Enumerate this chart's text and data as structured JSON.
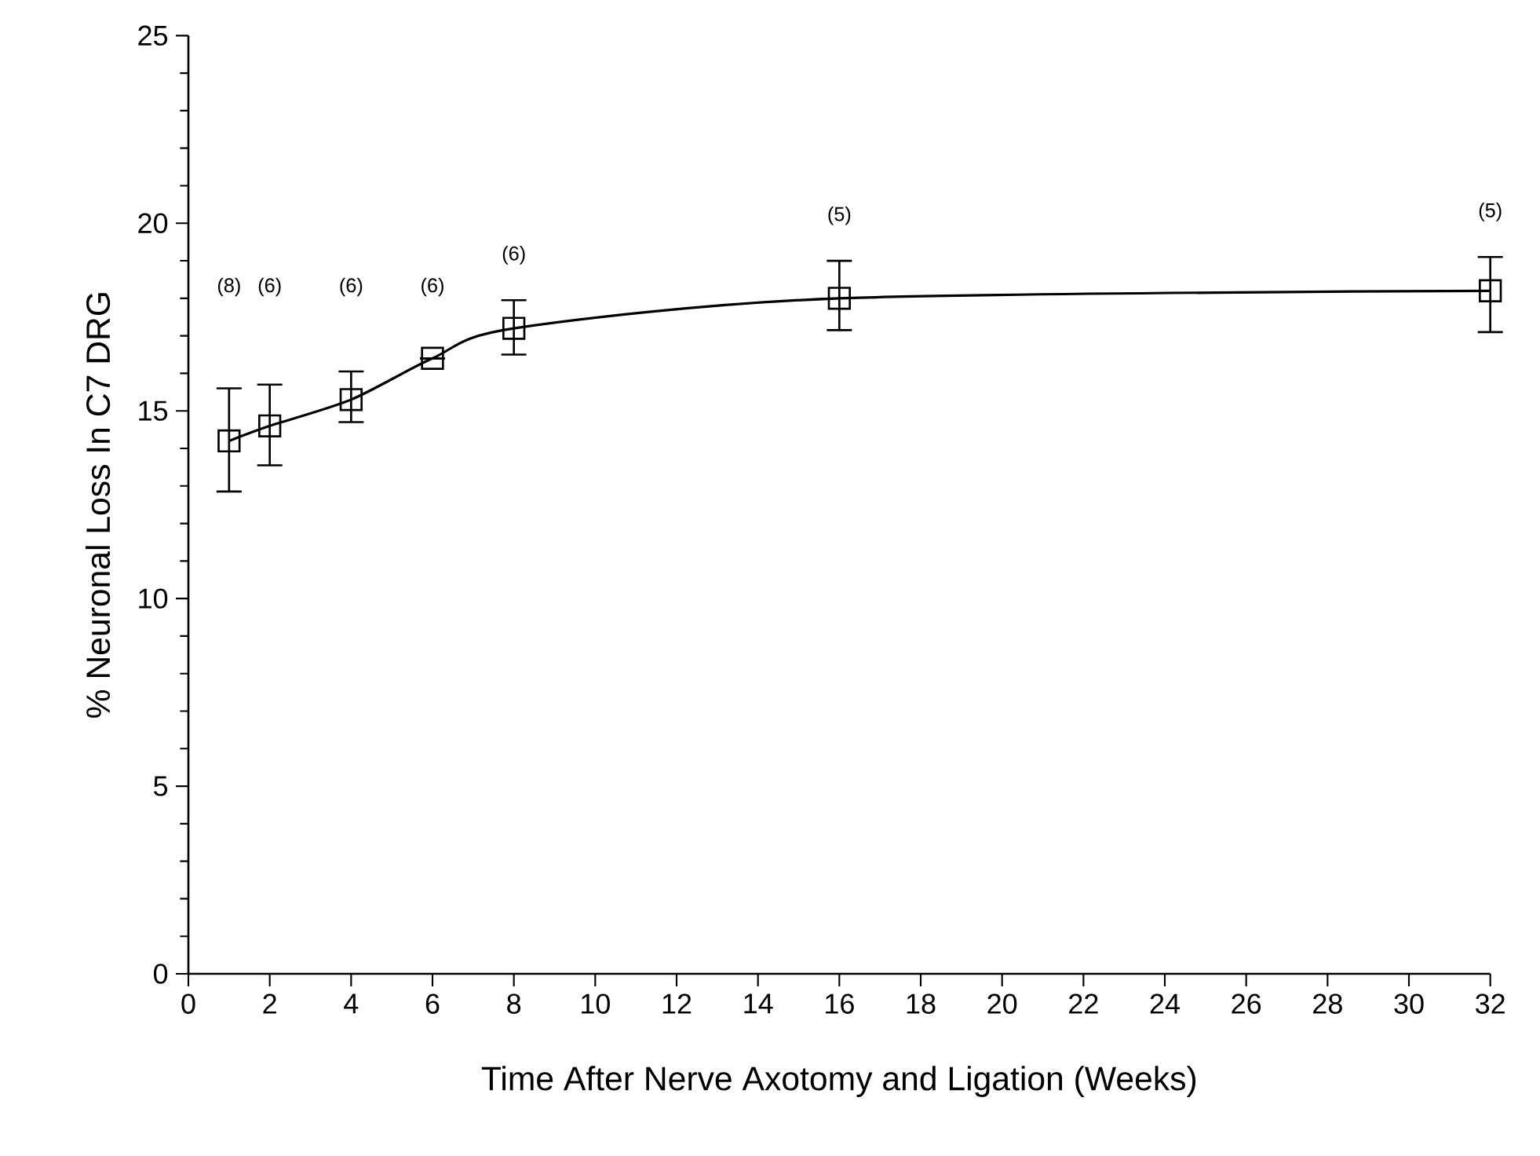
{
  "chart_data": {
    "type": "line",
    "xlabel": "Time After Nerve Axotomy and Ligation (Weeks)",
    "ylabel": "% Neuronal Loss In C7 DRG",
    "x": [
      1,
      2,
      4,
      6,
      8,
      16,
      32
    ],
    "series": [
      {
        "color": "#000000",
        "values": [
          14.2,
          14.6,
          15.3,
          16.4,
          17.2,
          18.0,
          18.2
        ],
        "errors": [
          [
            12.85,
            15.6
          ],
          [
            13.55,
            15.7
          ],
          [
            14.7,
            16.05
          ],
          null,
          [
            16.5,
            17.95
          ],
          [
            17.15,
            19.0
          ],
          [
            17.1,
            19.1
          ]
        ]
      }
    ],
    "xlim": [
      0,
      32
    ],
    "ylim": [
      0,
      25
    ],
    "xticks": [
      0,
      2,
      4,
      6,
      8,
      10,
      12,
      14,
      16,
      18,
      20,
      22,
      24,
      26,
      28,
      30,
      32
    ],
    "yticks": [
      0,
      5,
      10,
      15,
      20,
      25
    ],
    "marker": "square",
    "line_style": "solid",
    "grid": false,
    "annotations": [
      "(8)",
      "(6)",
      "(6)",
      "(6)",
      "(6)",
      "(5)",
      "(5)"
    ]
  }
}
